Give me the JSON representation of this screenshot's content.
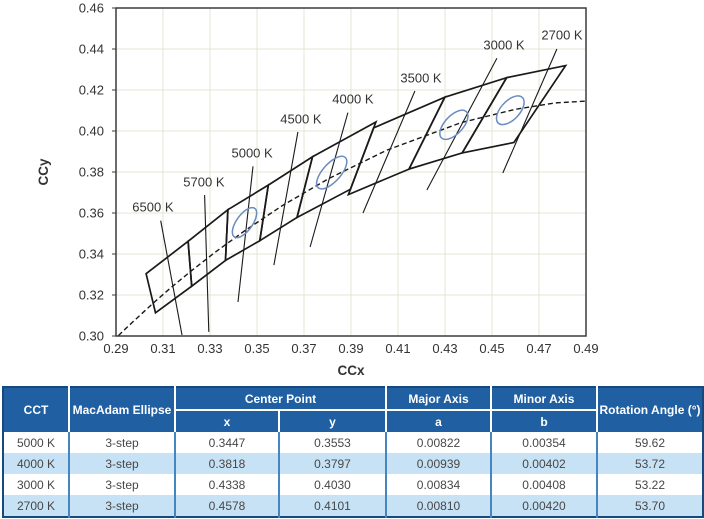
{
  "colors": {
    "grid": "#e3e4d3",
    "line": "#1a1a1a",
    "frame": "#3c3c3c",
    "ellipse": "#6b8cc0",
    "text": "#333333",
    "header_bg": "#1f5fa2",
    "stripe": "#c8e2f5",
    "cell_border": "#4486bf",
    "table_outer": "#16497e"
  },
  "chart_data": {
    "type": "scatter",
    "xlabel": "CCx",
    "ylabel": "CCy",
    "xlim": [
      0.29,
      0.49
    ],
    "ylim": [
      0.3,
      0.46
    ],
    "xticks": [
      0.29,
      0.31,
      0.33,
      0.35,
      0.37,
      0.39,
      0.41,
      0.43,
      0.45,
      0.47,
      0.49
    ],
    "yticks": [
      0.3,
      0.32,
      0.34,
      0.36,
      0.38,
      0.4,
      0.42,
      0.44,
      0.46
    ],
    "grid": true,
    "legend": "none",
    "cct_bins": [
      {
        "label": "2700 K",
        "points": [
          [
            0.4562,
            0.426
          ],
          [
            0.4813,
            0.4319
          ],
          [
            0.4593,
            0.3944
          ],
          [
            0.4373,
            0.3893
          ]
        ]
      },
      {
        "label": "3000 K",
        "points": [
          [
            0.4299,
            0.4165
          ],
          [
            0.4562,
            0.426
          ],
          [
            0.4373,
            0.3893
          ],
          [
            0.4147,
            0.3814
          ]
        ]
      },
      {
        "label": "3500 K",
        "points": [
          [
            0.3996,
            0.4015
          ],
          [
            0.4299,
            0.4165
          ],
          [
            0.4147,
            0.3814
          ],
          [
            0.3889,
            0.369
          ]
        ]
      },
      {
        "label": "4000 K",
        "points": [
          [
            0.3736,
            0.3874
          ],
          [
            0.4006,
            0.4044
          ],
          [
            0.3898,
            0.3716
          ],
          [
            0.367,
            0.3578
          ]
        ]
      },
      {
        "label": "4500 K",
        "points": [
          [
            0.3548,
            0.3736
          ],
          [
            0.3736,
            0.3874
          ],
          [
            0.367,
            0.3578
          ],
          [
            0.3512,
            0.3465
          ]
        ]
      },
      {
        "label": "5000 K",
        "points": [
          [
            0.3376,
            0.3616
          ],
          [
            0.3548,
            0.3736
          ],
          [
            0.3512,
            0.3465
          ],
          [
            0.3366,
            0.3369
          ]
        ]
      },
      {
        "label": "5700 K",
        "points": [
          [
            0.3207,
            0.3462
          ],
          [
            0.3376,
            0.3616
          ],
          [
            0.3366,
            0.3369
          ],
          [
            0.3222,
            0.3243
          ]
        ]
      },
      {
        "label": "6500 K",
        "points": [
          [
            0.3028,
            0.3304
          ],
          [
            0.3207,
            0.3462
          ],
          [
            0.3222,
            0.3243
          ],
          [
            0.3068,
            0.3113
          ]
        ]
      }
    ],
    "planckian_locus": [
      [
        0.291,
        0.3002
      ],
      [
        0.2952,
        0.3048
      ],
      [
        0.3004,
        0.3103
      ],
      [
        0.3064,
        0.3166
      ],
      [
        0.3135,
        0.3237
      ],
      [
        0.3221,
        0.3318
      ],
      [
        0.3324,
        0.341
      ],
      [
        0.3451,
        0.3516
      ],
      [
        0.3608,
        0.3636
      ],
      [
        0.3805,
        0.3768
      ],
      [
        0.4053,
        0.3907
      ],
      [
        0.4369,
        0.4041
      ],
      [
        0.4599,
        0.4106
      ],
      [
        0.477,
        0.4137
      ],
      [
        0.49,
        0.4146
      ]
    ],
    "macadam_ellipses": [
      {
        "cct": "5000 K",
        "cx": 0.3447,
        "cy": 0.3553,
        "a": 0.00822,
        "b": 0.00354,
        "angle": 59.62
      },
      {
        "cct": "4000 K",
        "cx": 0.3818,
        "cy": 0.3797,
        "a": 0.00939,
        "b": 0.00402,
        "angle": 53.72
      },
      {
        "cct": "3000 K",
        "cx": 0.4338,
        "cy": 0.403,
        "a": 0.00834,
        "b": 0.00408,
        "angle": 53.22
      },
      {
        "cct": "2700 K",
        "cx": 0.4578,
        "cy": 0.4101,
        "a": 0.0081,
        "b": 0.0042,
        "angle": 53.7
      }
    ],
    "cct_labels": [
      {
        "text": "6500 K",
        "x": 0.3057,
        "y": 0.3629,
        "leader": [
          [
            0.309,
            0.3563
          ],
          [
            0.3181,
            0.3005
          ]
        ]
      },
      {
        "text": "5700 K",
        "x": 0.3274,
        "y": 0.3751,
        "leader": [
          [
            0.3277,
            0.3688
          ],
          [
            0.3295,
            0.302
          ]
        ]
      },
      {
        "text": "5000 K",
        "x": 0.3479,
        "y": 0.3893,
        "leader": [
          [
            0.3483,
            0.3828
          ],
          [
            0.3419,
            0.3166
          ]
        ]
      },
      {
        "text": "4500 K",
        "x": 0.3687,
        "y": 0.4059,
        "leader": [
          [
            0.3674,
            0.3995
          ],
          [
            0.3572,
            0.3346
          ]
        ]
      },
      {
        "text": "4000 K",
        "x": 0.3908,
        "y": 0.4156,
        "leader": [
          [
            0.3887,
            0.409
          ],
          [
            0.3726,
            0.3434
          ]
        ]
      },
      {
        "text": "3500 K",
        "x": 0.4198,
        "y": 0.4259,
        "leader": [
          [
            0.4172,
            0.4195
          ],
          [
            0.3951,
            0.36
          ]
        ]
      },
      {
        "text": "3000 K",
        "x": 0.4551,
        "y": 0.442,
        "leader": [
          [
            0.4521,
            0.4355
          ],
          [
            0.4223,
            0.3712
          ]
        ]
      },
      {
        "text": "2700 K",
        "x": 0.4798,
        "y": 0.4468,
        "leader": [
          [
            0.4776,
            0.44
          ],
          [
            0.4546,
            0.3795
          ]
        ]
      }
    ]
  },
  "table": {
    "headers": {
      "cct": "CCT",
      "macadam": "MacAdam Ellipse",
      "center_point": "Center Point",
      "center_x": "x",
      "center_y": "y",
      "major_axis": "Major Axis",
      "major_a": "a",
      "minor_axis": "Minor Axis",
      "minor_b": "b",
      "rotation": "Rotation Angle (°)"
    },
    "rows": [
      [
        "5000 K",
        "3-step",
        "0.3447",
        "0.3553",
        "0.00822",
        "0.00354",
        "59.62"
      ],
      [
        "4000 K",
        "3-step",
        "0.3818",
        "0.3797",
        "0.00939",
        "0.00402",
        "53.72"
      ],
      [
        "3000 K",
        "3-step",
        "0.4338",
        "0.4030",
        "0.00834",
        "0.00408",
        "53.22"
      ],
      [
        "2700 K",
        "3-step",
        "0.4578",
        "0.4101",
        "0.00810",
        "0.00420",
        "53.70"
      ]
    ]
  }
}
